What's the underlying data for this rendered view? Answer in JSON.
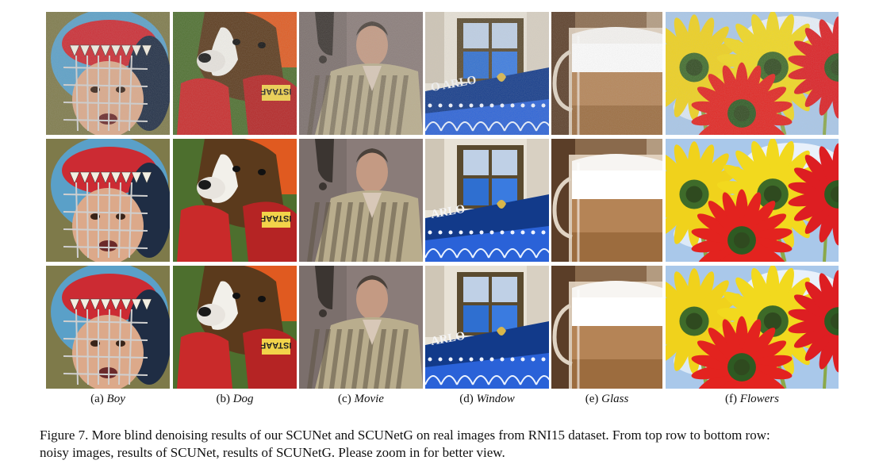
{
  "figure": {
    "rows": [
      "noisy images",
      "results of SCUNet",
      "results of SCUNetG"
    ],
    "columns": [
      {
        "prefix": "(a)",
        "name": "Boy"
      },
      {
        "prefix": "(b)",
        "name": "Dog"
      },
      {
        "prefix": "(c)",
        "name": "Movie"
      },
      {
        "prefix": "(d)",
        "name": "Window"
      },
      {
        "prefix": "(e)",
        "name": "Glass"
      },
      {
        "prefix": "(f)",
        "name": "Flowers"
      }
    ],
    "glove_text": "ISTAAF",
    "sign_text": "ARLO",
    "sign_text_noisy": "O ARLO",
    "caption_line1": "Figure 7.  More blind denoising results of our SCUNet and SCUNetG on real images from RNI15 dataset.  From top row to bottom row:",
    "caption_line2": "noisy images, results of SCUNet, results of SCUNetG. Please zoom in for better view."
  }
}
